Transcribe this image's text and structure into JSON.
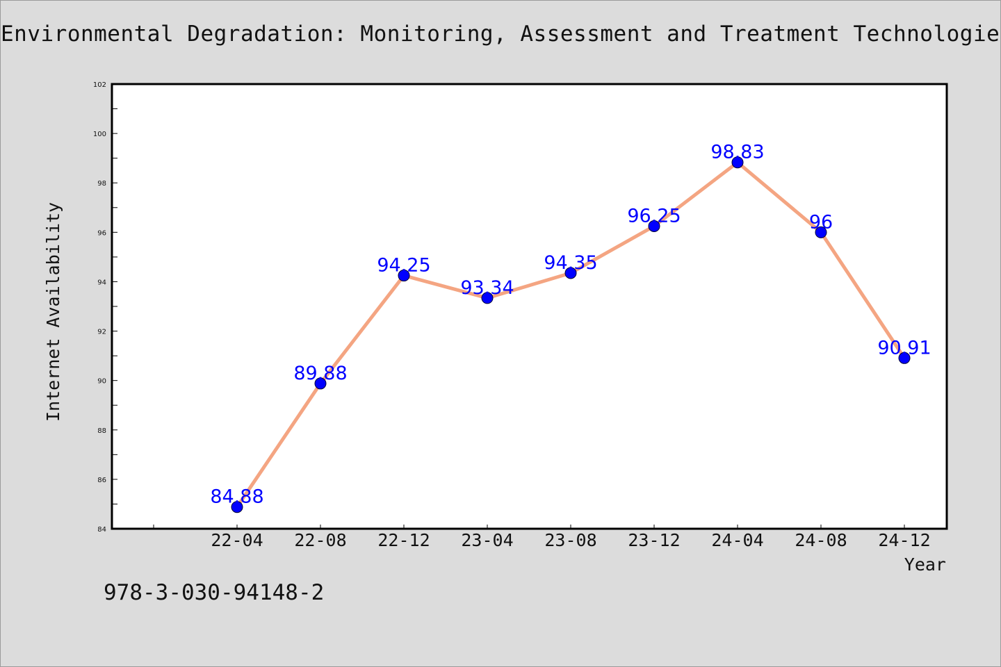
{
  "title": "Environmental Degradation: Monitoring, Assessment and Treatment Technologies",
  "footer_text": "978-3-030-94148-2",
  "chart_data": {
    "type": "line",
    "title": "Environmental Degradation: Monitoring, Assessment and Treatment Technologies",
    "xlabel": "Year",
    "ylabel": "Internet Availability",
    "categories": [
      "22-04",
      "22-08",
      "22-12",
      "23-04",
      "23-08",
      "23-12",
      "24-04",
      "24-08",
      "24-12"
    ],
    "series": [
      {
        "values": [
          84.88,
          89.88,
          94.25,
          93.34,
          94.35,
          96.25,
          98.83,
          96,
          90.91
        ],
        "data_labels": [
          "84.88",
          "89.88",
          "94.25",
          "93.34",
          "94.35",
          "96.25",
          "98.83",
          "96",
          "90.91"
        ],
        "line_color": "#f4a582",
        "marker_color": "#0000ff"
      }
    ],
    "ylim": [
      84,
      102
    ],
    "yticks": [
      "84",
      "86",
      "88",
      "90",
      "92",
      "94",
      "96",
      "98",
      "100",
      "102"
    ],
    "data_label_color": "#0000ff",
    "grid": false,
    "legend": "none"
  }
}
